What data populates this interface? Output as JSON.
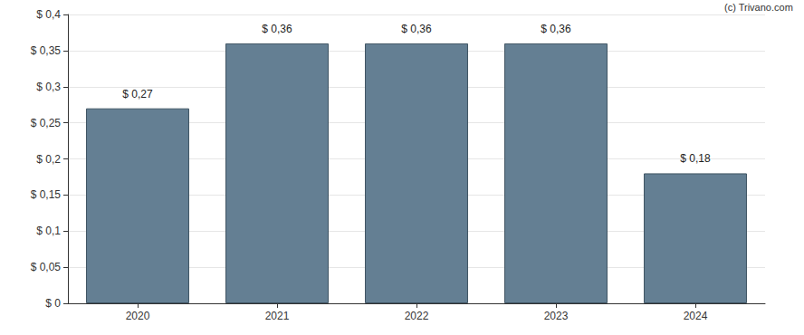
{
  "chart_data": {
    "type": "bar",
    "annotation": "(c) Trivano.com",
    "categories": [
      "2020",
      "2021",
      "2022",
      "2023",
      "2024"
    ],
    "values": [
      0.27,
      0.36,
      0.36,
      0.36,
      0.18
    ],
    "value_labels": [
      "$ 0,27",
      "$ 0,36",
      "$ 0,36",
      "$ 0,36",
      "$ 0,18"
    ],
    "data_labels": true,
    "color": "#647f93",
    "ylim": [
      0,
      0.4
    ],
    "yticks": [
      {
        "value": 0,
        "label": "$ 0"
      },
      {
        "value": 0.05,
        "label": "$ 0,05"
      },
      {
        "value": 0.1,
        "label": "$ 0,1"
      },
      {
        "value": 0.15,
        "label": "$ 0,15"
      },
      {
        "value": 0.2,
        "label": "$ 0,2"
      },
      {
        "value": 0.25,
        "label": "$ 0,25"
      },
      {
        "value": 0.3,
        "label": "$ 0,3"
      },
      {
        "value": 0.35,
        "label": "$ 0,35"
      },
      {
        "value": 0.4,
        "label": "$ 0,4"
      }
    ],
    "grid": true
  }
}
